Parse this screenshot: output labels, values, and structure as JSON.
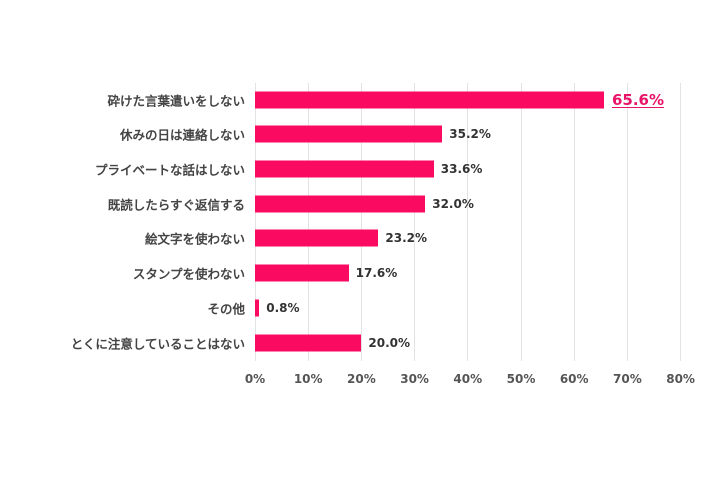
{
  "chart_data": {
    "type": "bar",
    "orientation": "horizontal",
    "title": "",
    "xlabel": "",
    "ylabel": "",
    "categories": [
      "砕けた言葉遣いをしない",
      "休みの日は連絡しない",
      "プライベートな話はしない",
      "既読したらすぐ返信する",
      "絵文字を使わない",
      "スタンプを使わない",
      "その他",
      "とくに注意していることはない"
    ],
    "values": [
      65.6,
      35.2,
      33.6,
      32.0,
      23.2,
      17.6,
      0.8,
      20.0
    ],
    "value_labels": [
      "65.6%",
      "35.2%",
      "33.6%",
      "32.0%",
      "23.2%",
      "17.6%",
      "0.8%",
      "20.0%"
    ],
    "highlighted_index": 0,
    "xlim": [
      0,
      80
    ],
    "x_ticks": [
      "0%",
      "10%",
      "20%",
      "30%",
      "40%",
      "50%",
      "60%",
      "70%",
      "80%"
    ],
    "grid": true,
    "legend": null,
    "colors": {
      "bar": "#fb0a62",
      "highlight_label": "#e8146a",
      "label": "#444444",
      "grid": "#e3e3e3"
    }
  }
}
